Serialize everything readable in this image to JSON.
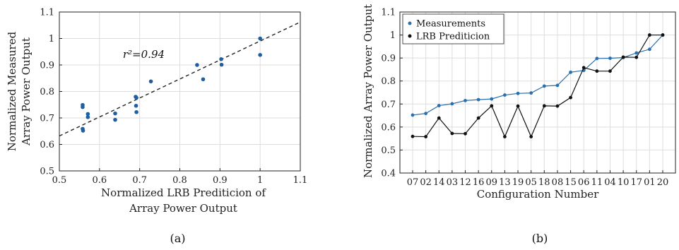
{
  "chart_data": [
    {
      "id": "a",
      "type": "scatter",
      "caption": "(a)",
      "xlabel_lines": [
        "Normalized LRB Prediticion of",
        "Array Power Output"
      ],
      "ylabel_lines": [
        "Normalized Measured",
        "Array Power Output"
      ],
      "xlim": [
        0.5,
        1.1
      ],
      "ylim": [
        0.5,
        1.1
      ],
      "xticks": [
        0.5,
        0.6,
        0.7,
        0.8,
        0.9,
        1,
        1.1
      ],
      "yticks": [
        0.5,
        0.6,
        0.7,
        0.8,
        0.9,
        1,
        1.1
      ],
      "xtick_labels": [
        "0.5",
        "0.6",
        "0.7",
        "0.8",
        "0.9",
        "1",
        "1.1"
      ],
      "ytick_labels": [
        "0.5",
        "0.6",
        "0.7",
        "0.8",
        "0.9",
        "1",
        "1.1"
      ],
      "grid": true,
      "annotation": {
        "text": "r²=0.94",
        "x": 0.63,
        "y": 0.94
      },
      "points": [
        {
          "x": 0.558,
          "y": 0.749
        },
        {
          "x": 0.558,
          "y": 0.741
        },
        {
          "x": 0.558,
          "y": 0.659
        },
        {
          "x": 0.559,
          "y": 0.652
        },
        {
          "x": 0.571,
          "y": 0.715
        },
        {
          "x": 0.571,
          "y": 0.703
        },
        {
          "x": 0.639,
          "y": 0.717
        },
        {
          "x": 0.639,
          "y": 0.693
        },
        {
          "x": 0.69,
          "y": 0.78
        },
        {
          "x": 0.692,
          "y": 0.776
        },
        {
          "x": 0.691,
          "y": 0.746
        },
        {
          "x": 0.692,
          "y": 0.722
        },
        {
          "x": 0.728,
          "y": 0.838
        },
        {
          "x": 0.843,
          "y": 0.9
        },
        {
          "x": 0.858,
          "y": 0.846
        },
        {
          "x": 0.903,
          "y": 0.922
        },
        {
          "x": 0.904,
          "y": 0.901
        },
        {
          "x": 1.0,
          "y": 1.0
        },
        {
          "x": 1.0,
          "y": 0.938
        }
      ],
      "fit_line": {
        "x": [
          0.5,
          1.1
        ],
        "y": [
          0.632,
          1.062
        ]
      },
      "colors": {
        "points": "#1f5fa0",
        "fit": "#222222"
      }
    },
    {
      "id": "b",
      "type": "line",
      "caption": "(b)",
      "xlabel": "Configuration Number",
      "ylabel": "Normalized Array Power Output",
      "ylim": [
        0.4,
        1.1
      ],
      "yticks": [
        0.4,
        0.5,
        0.6,
        0.7,
        0.8,
        0.9,
        1,
        1.1
      ],
      "ytick_labels": [
        "0.4",
        "0.5",
        "0.6",
        "0.7",
        "0.8",
        "0.9",
        "1",
        "1.1"
      ],
      "categories": [
        "07",
        "02",
        "14",
        "03",
        "12",
        "16",
        "09",
        "13",
        "19",
        "05",
        "18",
        "08",
        "15",
        "06",
        "11",
        "04",
        "10",
        "17",
        "01",
        "20"
      ],
      "grid": true,
      "legend_position": "top-left",
      "series": [
        {
          "name": "Measurements",
          "color": "#2a6fae",
          "values": [
            0.652,
            0.659,
            0.693,
            0.701,
            0.715,
            0.719,
            0.722,
            0.739,
            0.746,
            0.748,
            0.778,
            0.781,
            0.838,
            0.846,
            0.898,
            0.899,
            0.902,
            0.922,
            0.938,
            1.0
          ]
        },
        {
          "name": "LRB Prediticion",
          "color": "#111111",
          "values": [
            0.559,
            0.558,
            0.639,
            0.572,
            0.571,
            0.639,
            0.692,
            0.558,
            0.691,
            0.558,
            0.692,
            0.691,
            0.728,
            0.858,
            0.843,
            0.843,
            0.904,
            0.903,
            1.0,
            1.0
          ]
        }
      ]
    }
  ]
}
